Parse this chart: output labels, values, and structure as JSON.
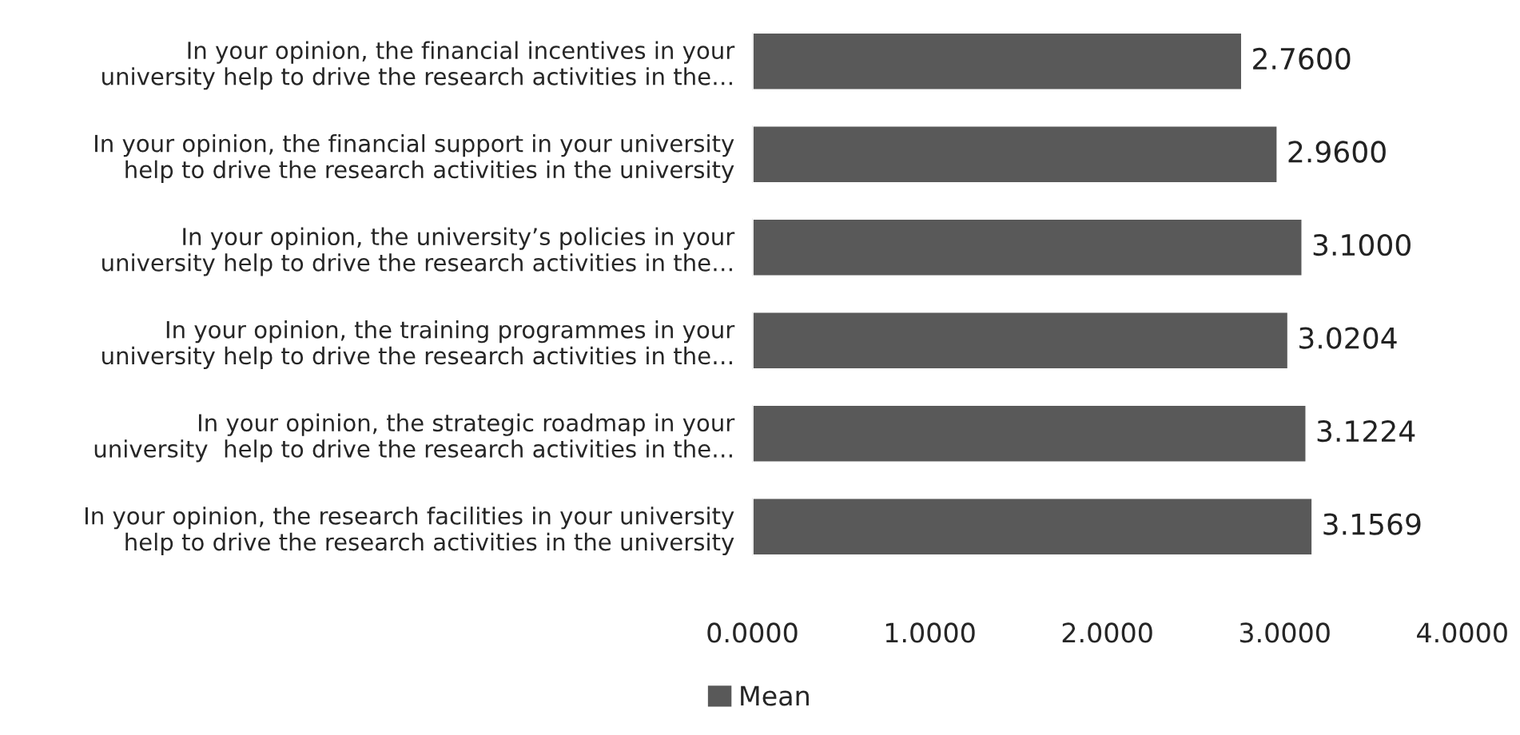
{
  "chart_data": {
    "type": "bar",
    "orientation": "horizontal",
    "categories": [
      "In your opinion, the financial incentives in your\nuniversity help to drive the research activities in the…",
      "In your opinion, the financial support in your university\nhelp to drive the research activities in the university",
      "In your opinion, the university’s policies in your\nuniversity help to drive the research activities in the…",
      "In your opinion, the training programmes in your\nuniversity help to drive the research activities in the…",
      "In your opinion, the strategic roadmap in your\nuniversity  help to drive the research activities in the…",
      "In your opinion, the research facilities in your university\nhelp to drive the research activities in the university"
    ],
    "series": [
      {
        "name": "Mean",
        "color": "#595959",
        "values": [
          2.76,
          2.96,
          3.1,
          3.0204,
          3.1224,
          3.1569
        ],
        "value_labels": [
          "2.7600",
          "2.9600",
          "3.1000",
          "3.0204",
          "3.1224",
          "3.1569"
        ]
      }
    ],
    "xlim": [
      0,
      4
    ],
    "xticks": [
      {
        "value": 0,
        "label": "0.0000"
      },
      {
        "value": 1,
        "label": "1.0000"
      },
      {
        "value": 2,
        "label": "2.0000"
      },
      {
        "value": 3,
        "label": "3.0000"
      },
      {
        "value": 4,
        "label": "4.0000"
      }
    ],
    "legend": "bottom",
    "grid": false
  }
}
